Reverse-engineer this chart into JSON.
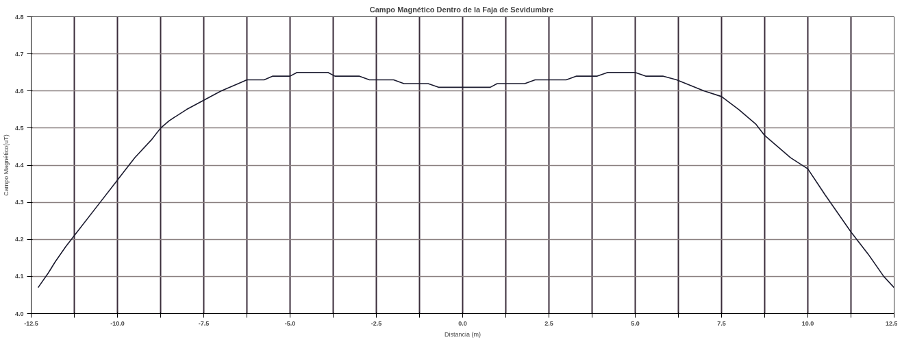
{
  "chart_data": {
    "type": "line",
    "title": "Campo Magnético  Dentro de la Faja de Sevidumbre",
    "xlabel": "Distancia (m)",
    "ylabel": "Campo Magnético(uT)",
    "x": [
      -12.3,
      -12.0,
      -11.8,
      -11.5,
      -11.25,
      -10.5,
      -10.0,
      -9.5,
      -9.0,
      -8.75,
      -8.5,
      -8.0,
      -7.5,
      -7.0,
      -6.5,
      -6.25,
      -5.75,
      -5.5,
      -5.0,
      -4.8,
      -3.9,
      -3.7,
      -3.0,
      -2.7,
      -2.0,
      -1.7,
      -1.0,
      -0.7,
      0.8,
      1.0,
      1.8,
      2.1,
      3.0,
      3.3,
      3.9,
      4.2,
      5.0,
      5.3,
      5.8,
      6.2,
      7.0,
      7.5,
      8.0,
      8.5,
      8.75,
      9.5,
      10.0,
      10.5,
      11.25,
      11.75,
      12.2,
      12.5
    ],
    "series": [
      {
        "color": "#1a1a2e",
        "values": [
          4.07,
          4.11,
          4.14,
          4.18,
          4.21,
          4.3,
          4.36,
          4.42,
          4.47,
          4.5,
          4.52,
          4.55,
          4.575,
          4.6,
          4.62,
          4.63,
          4.63,
          4.64,
          4.64,
          4.65,
          4.65,
          4.64,
          4.64,
          4.63,
          4.63,
          4.62,
          4.62,
          4.61,
          4.61,
          4.62,
          4.62,
          4.63,
          4.63,
          4.64,
          4.64,
          4.65,
          4.65,
          4.64,
          4.64,
          4.63,
          4.6,
          4.585,
          4.55,
          4.51,
          4.48,
          4.42,
          4.39,
          4.32,
          4.22,
          4.16,
          4.1,
          4.07
        ]
      }
    ],
    "xlim": [
      -12.5,
      12.5
    ],
    "ylim": [
      4.0,
      4.8
    ],
    "xticks": [
      {
        "value": -12.5,
        "label": "-12.5"
      },
      {
        "value": -11.25,
        "label": null
      },
      {
        "value": -10,
        "label": "-10.0"
      },
      {
        "value": -8.75,
        "label": null
      },
      {
        "value": -7.5,
        "label": "-7.5"
      },
      {
        "value": -6.25,
        "label": null
      },
      {
        "value": -5,
        "label": "-5.0"
      },
      {
        "value": -3.75,
        "label": null
      },
      {
        "value": -2.5,
        "label": "-2.5"
      },
      {
        "value": -1.25,
        "label": null
      },
      {
        "value": 0,
        "label": "0.0"
      },
      {
        "value": 1.25,
        "label": null
      },
      {
        "value": 2.5,
        "label": "2.5"
      },
      {
        "value": 3.75,
        "label": null
      },
      {
        "value": 5,
        "label": "5.0"
      },
      {
        "value": 6.25,
        "label": null
      },
      {
        "value": 7.5,
        "label": "7.5"
      },
      {
        "value": 8.75,
        "label": null
      },
      {
        "value": 10,
        "label": "10.0"
      },
      {
        "value": 11.25,
        "label": null
      },
      {
        "value": 12.5,
        "label": "12.5"
      }
    ],
    "yticks": [
      {
        "value": 4.0,
        "label": "4.0"
      },
      {
        "value": 4.1,
        "label": "4.1"
      },
      {
        "value": 4.2,
        "label": "4.2"
      },
      {
        "value": 4.3,
        "label": "4.3"
      },
      {
        "value": 4.4,
        "label": "4.4"
      },
      {
        "value": 4.5,
        "label": "4.5"
      },
      {
        "value": 4.6,
        "label": "4.6"
      },
      {
        "value": 4.7,
        "label": "4.7"
      },
      {
        "value": 4.8,
        "label": "4.8"
      }
    ],
    "grid": true,
    "marker": "none",
    "line_style": "solid"
  }
}
